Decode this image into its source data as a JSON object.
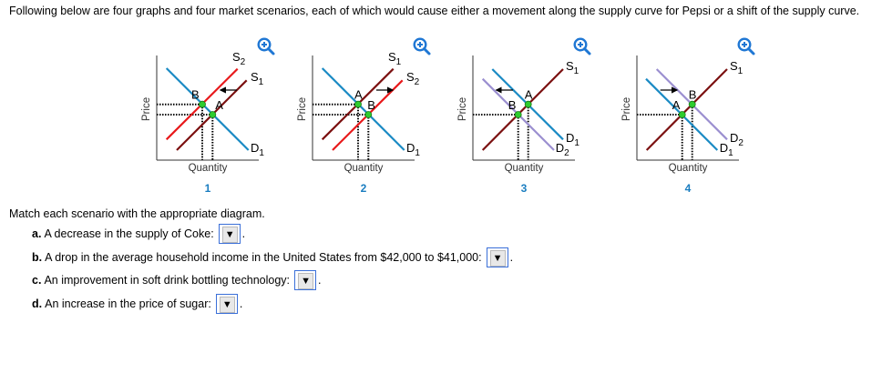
{
  "intro": "Following below are four graphs and four market scenarios, each of which would cause either a movement along the supply curve for Pepsi or a shift of the supply curve.",
  "graphs": [
    {
      "number": "1",
      "xlabel": "Quantity",
      "ylabel": "Price",
      "curves": [
        {
          "base": "S",
          "sub": "2",
          "color": "#e8191b"
        },
        {
          "base": "S",
          "sub": "1",
          "color": "#7b1010"
        },
        {
          "base": "D",
          "sub": "1",
          "color": "#1a8ac4"
        }
      ],
      "points": [
        "B",
        "A"
      ],
      "arrow": "left"
    },
    {
      "number": "2",
      "xlabel": "Quantity",
      "ylabel": "Price",
      "curves": [
        {
          "base": "S",
          "sub": "1",
          "color": "#7b1010"
        },
        {
          "base": "S",
          "sub": "2",
          "color": "#e8191b"
        },
        {
          "base": "D",
          "sub": "1",
          "color": "#1a8ac4"
        }
      ],
      "points": [
        "A",
        "B"
      ],
      "arrow": "right"
    },
    {
      "number": "3",
      "xlabel": "Quantity",
      "ylabel": "Price",
      "curves": [
        {
          "base": "S",
          "sub": "1",
          "color": "#7b1010"
        },
        {
          "base": "D",
          "sub": "1",
          "color": "#1a8ac4"
        },
        {
          "base": "D",
          "sub": "2",
          "color": "#9b8fd0"
        }
      ],
      "points": [
        "A",
        "B"
      ],
      "arrow": "left"
    },
    {
      "number": "4",
      "xlabel": "Quantity",
      "ylabel": "Price",
      "curves": [
        {
          "base": "S",
          "sub": "1",
          "color": "#7b1010"
        },
        {
          "base": "D",
          "sub": "2",
          "color": "#9b8fd0"
        },
        {
          "base": "D",
          "sub": "1",
          "color": "#1a8ac4"
        }
      ],
      "points": [
        "B",
        "A"
      ],
      "arrow": "right"
    }
  ],
  "equilibrium_color": "#2ecc2e",
  "zoom_icon": "zoom-in-icon",
  "question": "Match each scenario with the appropriate diagram.",
  "scenarios": [
    {
      "letter": "a.",
      "text": "A decrease in the supply of Coke:",
      "selected": ""
    },
    {
      "letter": "b.",
      "text": "A drop in the average household income in the United States from $42,000 to $41,000:",
      "selected": ""
    },
    {
      "letter": "c.",
      "text": "An improvement in soft drink bottling technology:",
      "selected": ""
    },
    {
      "letter": "d.",
      "text": "An increase in the price of sugar:",
      "selected": ""
    }
  ],
  "dropdown_glyph": "▼",
  "trailing": "."
}
